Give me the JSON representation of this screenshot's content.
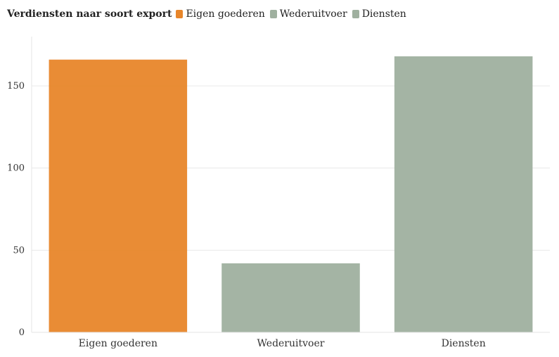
{
  "legend": {
    "title": "Verdiensten naar soort export",
    "items": [
      {
        "label": "Eigen goederen",
        "color": "#e8862a"
      },
      {
        "label": "Wederuitvoer",
        "color": "#9fb09f"
      },
      {
        "label": "Diensten",
        "color": "#9fb09f"
      }
    ]
  },
  "chart_data": {
    "type": "bar",
    "title": "",
    "xlabel": "",
    "ylabel": "",
    "categories": [
      "Eigen goederen",
      "Wederuitvoer",
      "Diensten"
    ],
    "values": [
      166,
      42,
      168
    ],
    "colors": [
      "#e8862a",
      "#9fb09f",
      "#9fb09f"
    ],
    "ylim": [
      0,
      180
    ],
    "yticks": [
      0,
      50,
      100,
      150
    ],
    "grid": true,
    "legend_position": "top-left"
  }
}
